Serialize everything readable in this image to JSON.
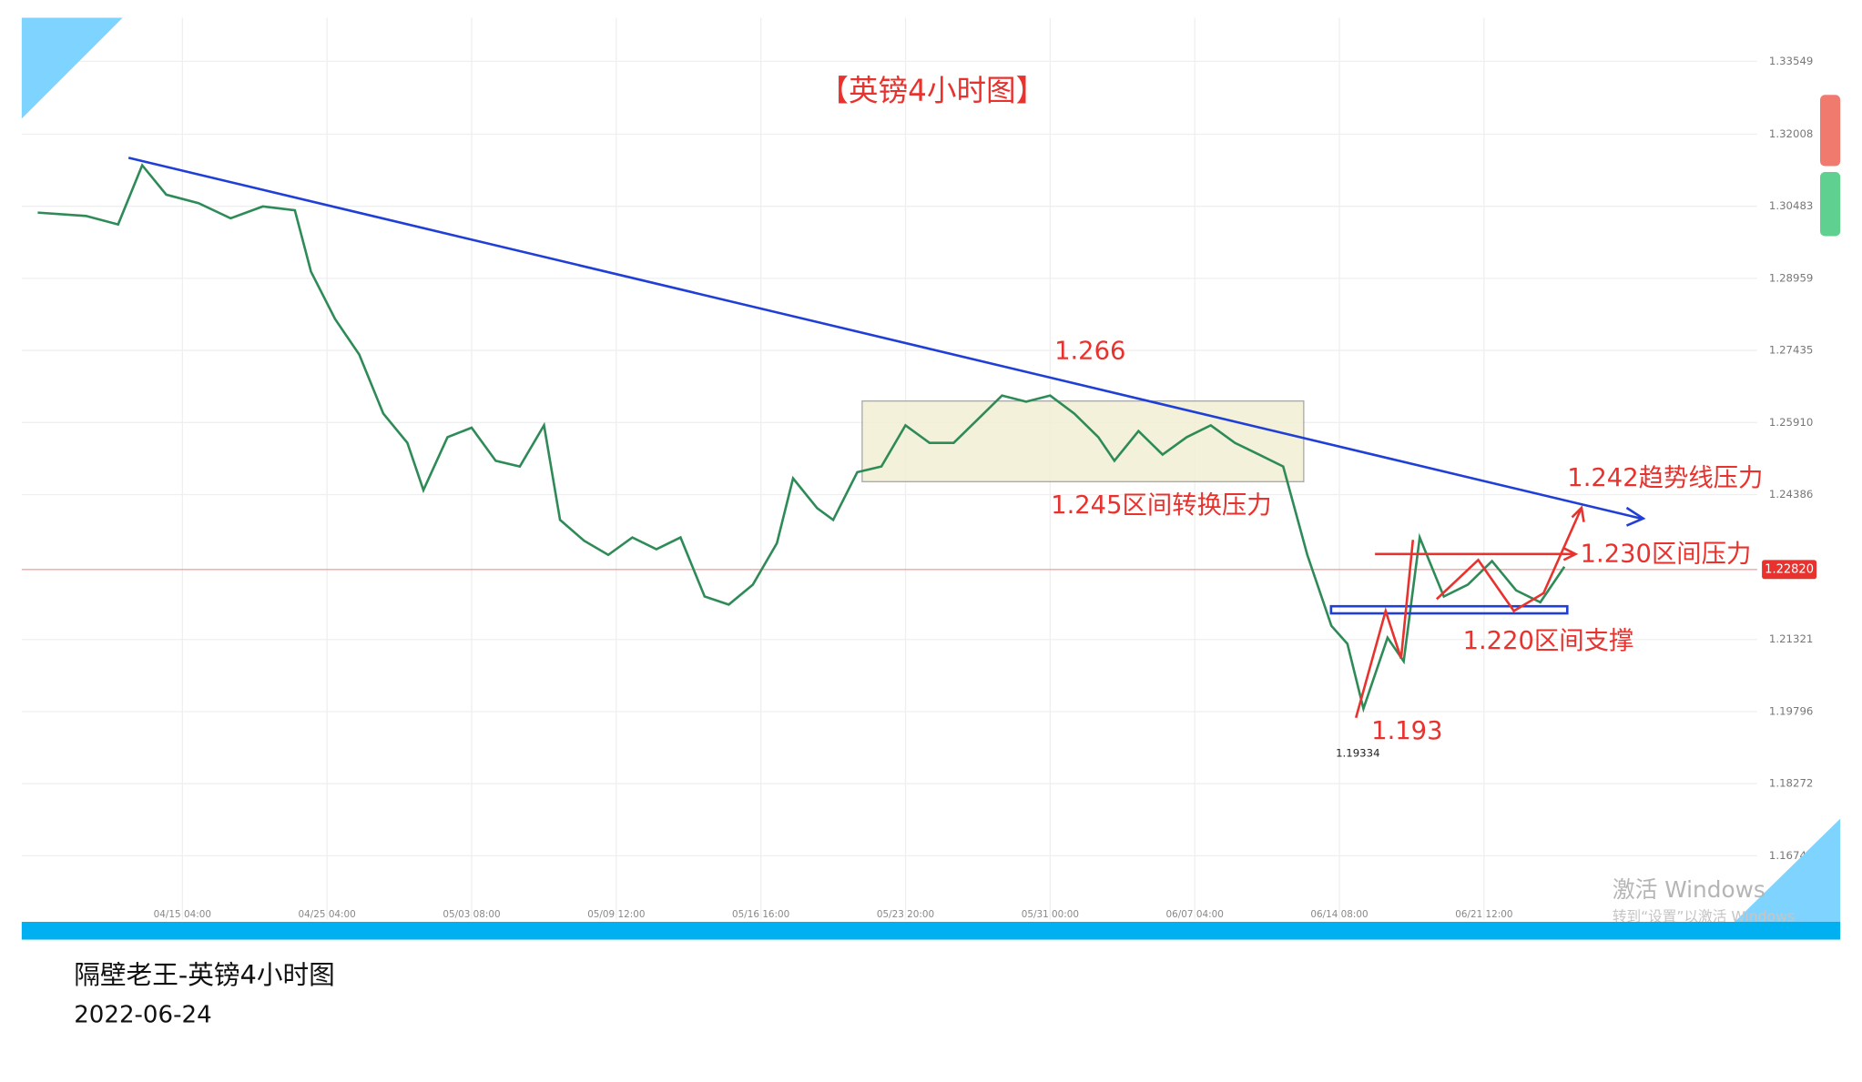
{
  "chart_data": {
    "type": "line",
    "title": "【英镑4小时图】",
    "color": "#2e8b57",
    "x": [
      0,
      12,
      20,
      26,
      32,
      40,
      48,
      56,
      64,
      68,
      74,
      80,
      86,
      92,
      96,
      102,
      108,
      114,
      120,
      126,
      130,
      136,
      142,
      148,
      154,
      160,
      166,
      172,
      178,
      184,
      188,
      194,
      198,
      204,
      210,
      216,
      222,
      228,
      234,
      240,
      246,
      252,
      258,
      264,
      268,
      274,
      280,
      286,
      292,
      298,
      304,
      310,
      316,
      322,
      326,
      330,
      336,
      340,
      344,
      350,
      356,
      362,
      368,
      374,
      380
    ],
    "values": [
      1.3035,
      1.3028,
      1.301,
      1.3135,
      1.3073,
      1.3055,
      1.3023,
      1.3048,
      1.304,
      1.291,
      1.281,
      1.2735,
      1.261,
      1.2548,
      1.2448,
      1.256,
      1.258,
      1.251,
      1.2498,
      1.2585,
      1.2385,
      1.2341,
      1.2311,
      1.2348,
      1.2323,
      1.2348,
      1.2223,
      1.2206,
      1.2248,
      1.2336,
      1.2473,
      1.241,
      1.2385,
      1.2486,
      1.2498,
      1.2585,
      1.2548,
      1.2548,
      1.2598,
      1.2648,
      1.2635,
      1.2648,
      1.261,
      1.256,
      1.251,
      1.2573,
      1.2523,
      1.256,
      1.2585,
      1.2548,
      1.2523,
      1.2498,
      1.2311,
      1.2161,
      1.2123,
      1.1986,
      1.2136,
      1.2086,
      1.2348,
      1.2223,
      1.2248,
      1.2298,
      1.2236,
      1.2211,
      1.2286
    ],
    "xlim": [
      -4,
      428
    ],
    "xticks": [
      {
        "value": 36,
        "label": "04/15 04:00"
      },
      {
        "value": 72,
        "label": "04/25 04:00"
      },
      {
        "value": 108,
        "label": "05/03 08:00"
      },
      {
        "value": 144,
        "label": "05/09 12:00"
      },
      {
        "value": 180,
        "label": "05/16 16:00"
      },
      {
        "value": 216,
        "label": "05/23 20:00"
      },
      {
        "value": 252,
        "label": "05/31 00:00"
      },
      {
        "value": 288,
        "label": "06/07 04:00"
      },
      {
        "value": 324,
        "label": "06/14 08:00"
      },
      {
        "value": 360,
        "label": "06/21 12:00"
      }
    ],
    "ylim": [
      1.154,
      1.3447
    ],
    "yticks": [
      1.33549,
      1.32008,
      1.30483,
      1.28959,
      1.27435,
      {
        "value": 1.2591,
        "label": "1.25910"
      },
      1.24386,
      1.21321,
      1.19796,
      1.18272,
      1.16748
    ],
    "grid": true,
    "price_label": {
      "value": 1.2282,
      "label": "1.22820"
    },
    "annotations": [
      "1.266",
      "1.245区间转换压力",
      "1.242趋势线压力",
      "1.230区间压力",
      "1.220区间支撑",
      "1.193",
      "1.19334"
    ]
  },
  "footer": {
    "caption": "隔壁老王-英镑4小时图",
    "date": "2022-06-24"
  },
  "watermark": {
    "line1": "激活 Windows",
    "line2": "转到“设置”以激活 Windows"
  }
}
